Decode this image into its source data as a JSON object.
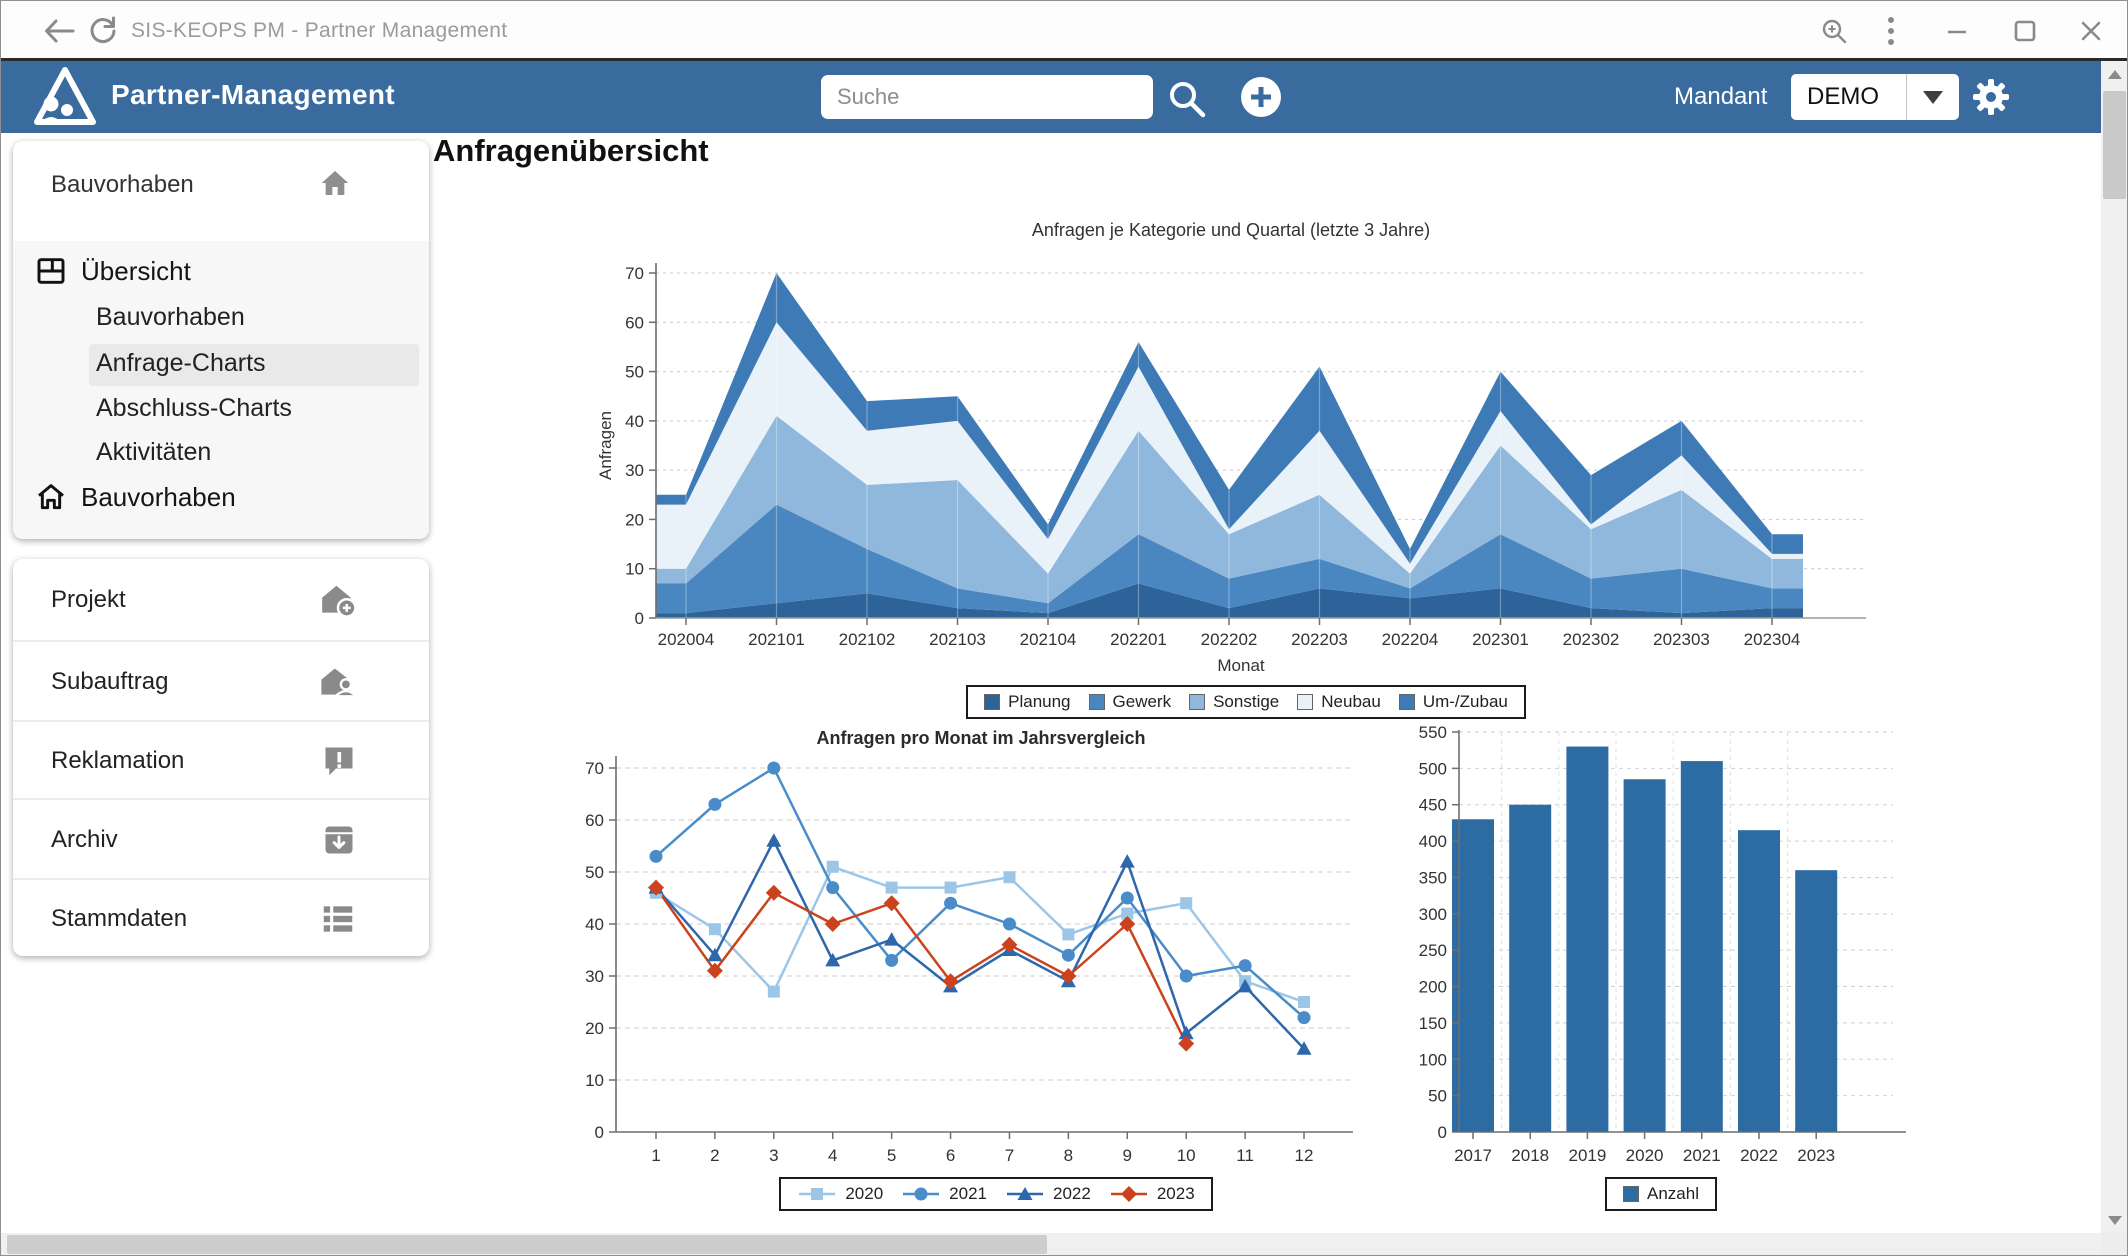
{
  "window": {
    "title": "SIS-KEOPS PM - Partner Management"
  },
  "header": {
    "app_title": "Partner-Management",
    "search_placeholder": "Suche",
    "mandant_label": "Mandant",
    "mandant_value": "DEMO",
    "accent_color": "#3a6b9e",
    "icons": [
      "back-arrow-icon",
      "refresh-icon",
      "search-icon",
      "plus-icon",
      "dropdown-arrow-icon",
      "gear-icon",
      "zoom-icon",
      "kebab-menu-icon",
      "minimize-icon",
      "maximize-icon",
      "close-icon"
    ]
  },
  "sidebar": {
    "context_title": "Bauvorhaben",
    "context_icon": "home-icon",
    "overview": {
      "label": "Übersicht",
      "icon": "overview-window-icon",
      "items": [
        {
          "label": "Bauvorhaben",
          "active": false
        },
        {
          "label": "Anfrage-Charts",
          "active": true
        },
        {
          "label": "Abschluss-Charts",
          "active": false
        },
        {
          "label": "Aktivitäten",
          "active": false
        }
      ],
      "home_item": "Bauvorhaben",
      "home_item_icon": "home-outline-icon"
    },
    "modules": [
      {
        "label": "Projekt",
        "icon": "house-plus-icon"
      },
      {
        "label": "Subauftrag",
        "icon": "house-person-icon"
      },
      {
        "label": "Reklamation",
        "icon": "comment-exclamation-icon"
      },
      {
        "label": "Archiv",
        "icon": "archive-down-icon"
      },
      {
        "label": "Stammdaten",
        "icon": "list-icon"
      }
    ]
  },
  "main": {
    "page_title": "Anfragenübersicht"
  },
  "chart_data": [
    {
      "type": "area",
      "title": "Anfragen je Kategorie und Quartal (letzte 3 Jahre)",
      "xlabel": "Monat",
      "ylabel": "Anfragen",
      "ylim": [
        0,
        70
      ],
      "ytick": 10,
      "grid": true,
      "legend_position": "bottom",
      "categories": [
        "202004",
        "202101",
        "202102",
        "202103",
        "202104",
        "202201",
        "202202",
        "202203",
        "202204",
        "202301",
        "202302",
        "202303",
        "202304"
      ],
      "series": [
        {
          "name": "Planung",
          "color": "#2e6399",
          "values": [
            1,
            3,
            5,
            2,
            1,
            7,
            2,
            6,
            4,
            6,
            2,
            1,
            2
          ]
        },
        {
          "name": "Gewerk",
          "color": "#4a87c0",
          "values": [
            6,
            20,
            9,
            4,
            2,
            10,
            6,
            6,
            2,
            11,
            6,
            9,
            4
          ]
        },
        {
          "name": "Sonstige",
          "color": "#8fb8dc",
          "values": [
            3,
            18,
            13,
            22,
            6,
            21,
            9,
            13,
            3,
            18,
            10,
            16,
            6
          ]
        },
        {
          "name": "Neubau",
          "color": "#e9f1f9",
          "values": [
            13,
            19,
            11,
            12,
            7,
            13,
            1,
            13,
            2,
            7,
            1,
            7,
            1
          ]
        },
        {
          "name": "Um-/Zubau",
          "color": "#3e7ab5",
          "values": [
            2,
            10,
            6,
            5,
            3,
            5,
            8,
            13,
            3,
            8,
            10,
            7,
            4
          ]
        }
      ],
      "totals": [
        25,
        70,
        44,
        45,
        19,
        56,
        26,
        51,
        14,
        50,
        29,
        40,
        17
      ]
    },
    {
      "type": "line",
      "title": "Anfragen pro Monat im Jahrsvergleich",
      "xlabel": "",
      "ylabel": "",
      "ylim": [
        0,
        70
      ],
      "ytick": 10,
      "grid": true,
      "legend_position": "bottom",
      "x": [
        "1",
        "2",
        "3",
        "4",
        "5",
        "6",
        "7",
        "8",
        "9",
        "10",
        "11",
        "12"
      ],
      "series": [
        {
          "name": "2020",
          "marker": "square",
          "color": "#9cc6e8",
          "values": [
            46,
            39,
            27,
            51,
            47,
            47,
            49,
            38,
            42,
            44,
            29,
            25
          ]
        },
        {
          "name": "2021",
          "marker": "circle",
          "color": "#4a8cc9",
          "values": [
            53,
            63,
            70,
            47,
            33,
            44,
            40,
            34,
            45,
            30,
            32,
            22
          ]
        },
        {
          "name": "2022",
          "marker": "triangle",
          "color": "#2e67ab",
          "values": [
            47,
            34,
            56,
            33,
            37,
            28,
            35,
            29,
            52,
            19,
            28,
            16
          ]
        },
        {
          "name": "2023",
          "marker": "diamond",
          "color": "#ca431d",
          "values": [
            47,
            31,
            46,
            40,
            44,
            29,
            36,
            30,
            40,
            17
          ]
        }
      ]
    },
    {
      "type": "bar",
      "title": "",
      "xlabel": "",
      "ylabel": "",
      "ylim": [
        0,
        550
      ],
      "ytick": 50,
      "grid": true,
      "legend_position": "bottom",
      "categories": [
        "2017",
        "2018",
        "2019",
        "2020",
        "2021",
        "2022",
        "2023"
      ],
      "series": [
        {
          "name": "Anzahl",
          "color": "#2d6ba3",
          "values": [
            430,
            450,
            530,
            485,
            510,
            415,
            360
          ]
        }
      ]
    }
  ]
}
